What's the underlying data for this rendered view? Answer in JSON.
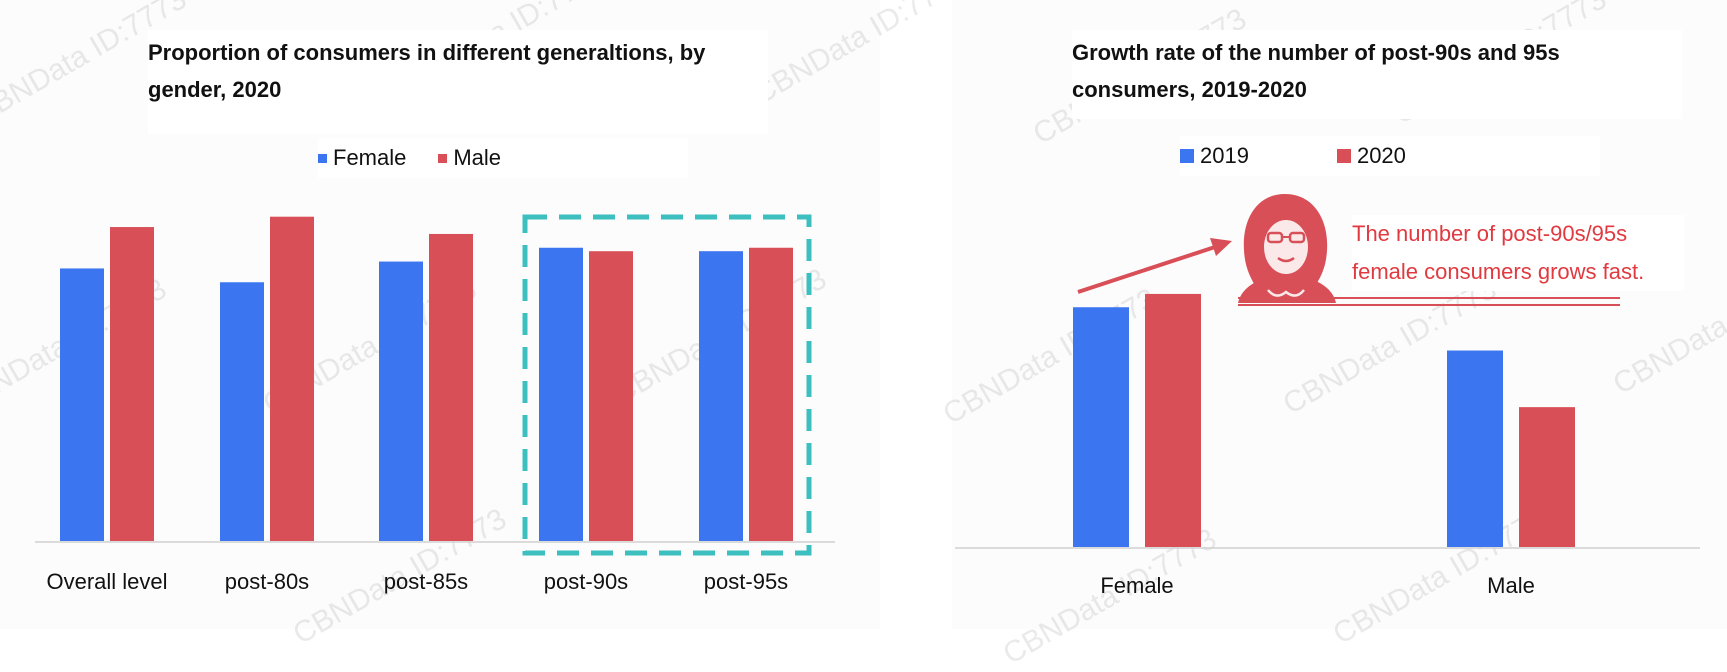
{
  "left": {
    "title_line1": "Proportion of consumers in different generaltions, by",
    "title_line2": "gender, 2020",
    "legend": [
      {
        "label": "Female",
        "color": "#3b76f0"
      },
      {
        "label": "Male",
        "color": "#d94f58"
      }
    ]
  },
  "right": {
    "title_line1": "Growth rate of the number of post-90s and 95s",
    "title_line2": "consumers, 2019-2020",
    "legend": [
      {
        "label": "2019",
        "color": "#3b76f0"
      },
      {
        "label": "2020",
        "color": "#d94f58"
      }
    ],
    "annotation_line1": "The number of post-90s/95s",
    "annotation_line2": "female consumers grows fast."
  },
  "watermark": "CBNData ID:7773",
  "highlight_color": "#3cbfbe",
  "chart_data": [
    {
      "type": "bar",
      "title": "Proportion of consumers in different generaltions, by gender, 2020",
      "categories": [
        "Overall level",
        "post-80s",
        "post-85s",
        "post-90s",
        "post-95s"
      ],
      "series": [
        {
          "name": "Female",
          "values": [
            79,
            75,
            81,
            85,
            84
          ]
        },
        {
          "name": "Male",
          "values": [
            91,
            94,
            89,
            84,
            85
          ]
        }
      ],
      "ylim": [
        0,
        100
      ],
      "grid": false,
      "legend_position": "top",
      "highlighted_categories": [
        "post-90s",
        "post-95s"
      ]
    },
    {
      "type": "bar",
      "title": "Growth rate of the number of post-90s and 95s consumers, 2019-2020",
      "categories": [
        "Female",
        "Male"
      ],
      "series": [
        {
          "name": "2019",
          "values": [
            72,
            59
          ]
        },
        {
          "name": "2020",
          "values": [
            76,
            42
          ]
        }
      ],
      "ylim": [
        0,
        100
      ],
      "grid": false,
      "legend_position": "top"
    }
  ]
}
